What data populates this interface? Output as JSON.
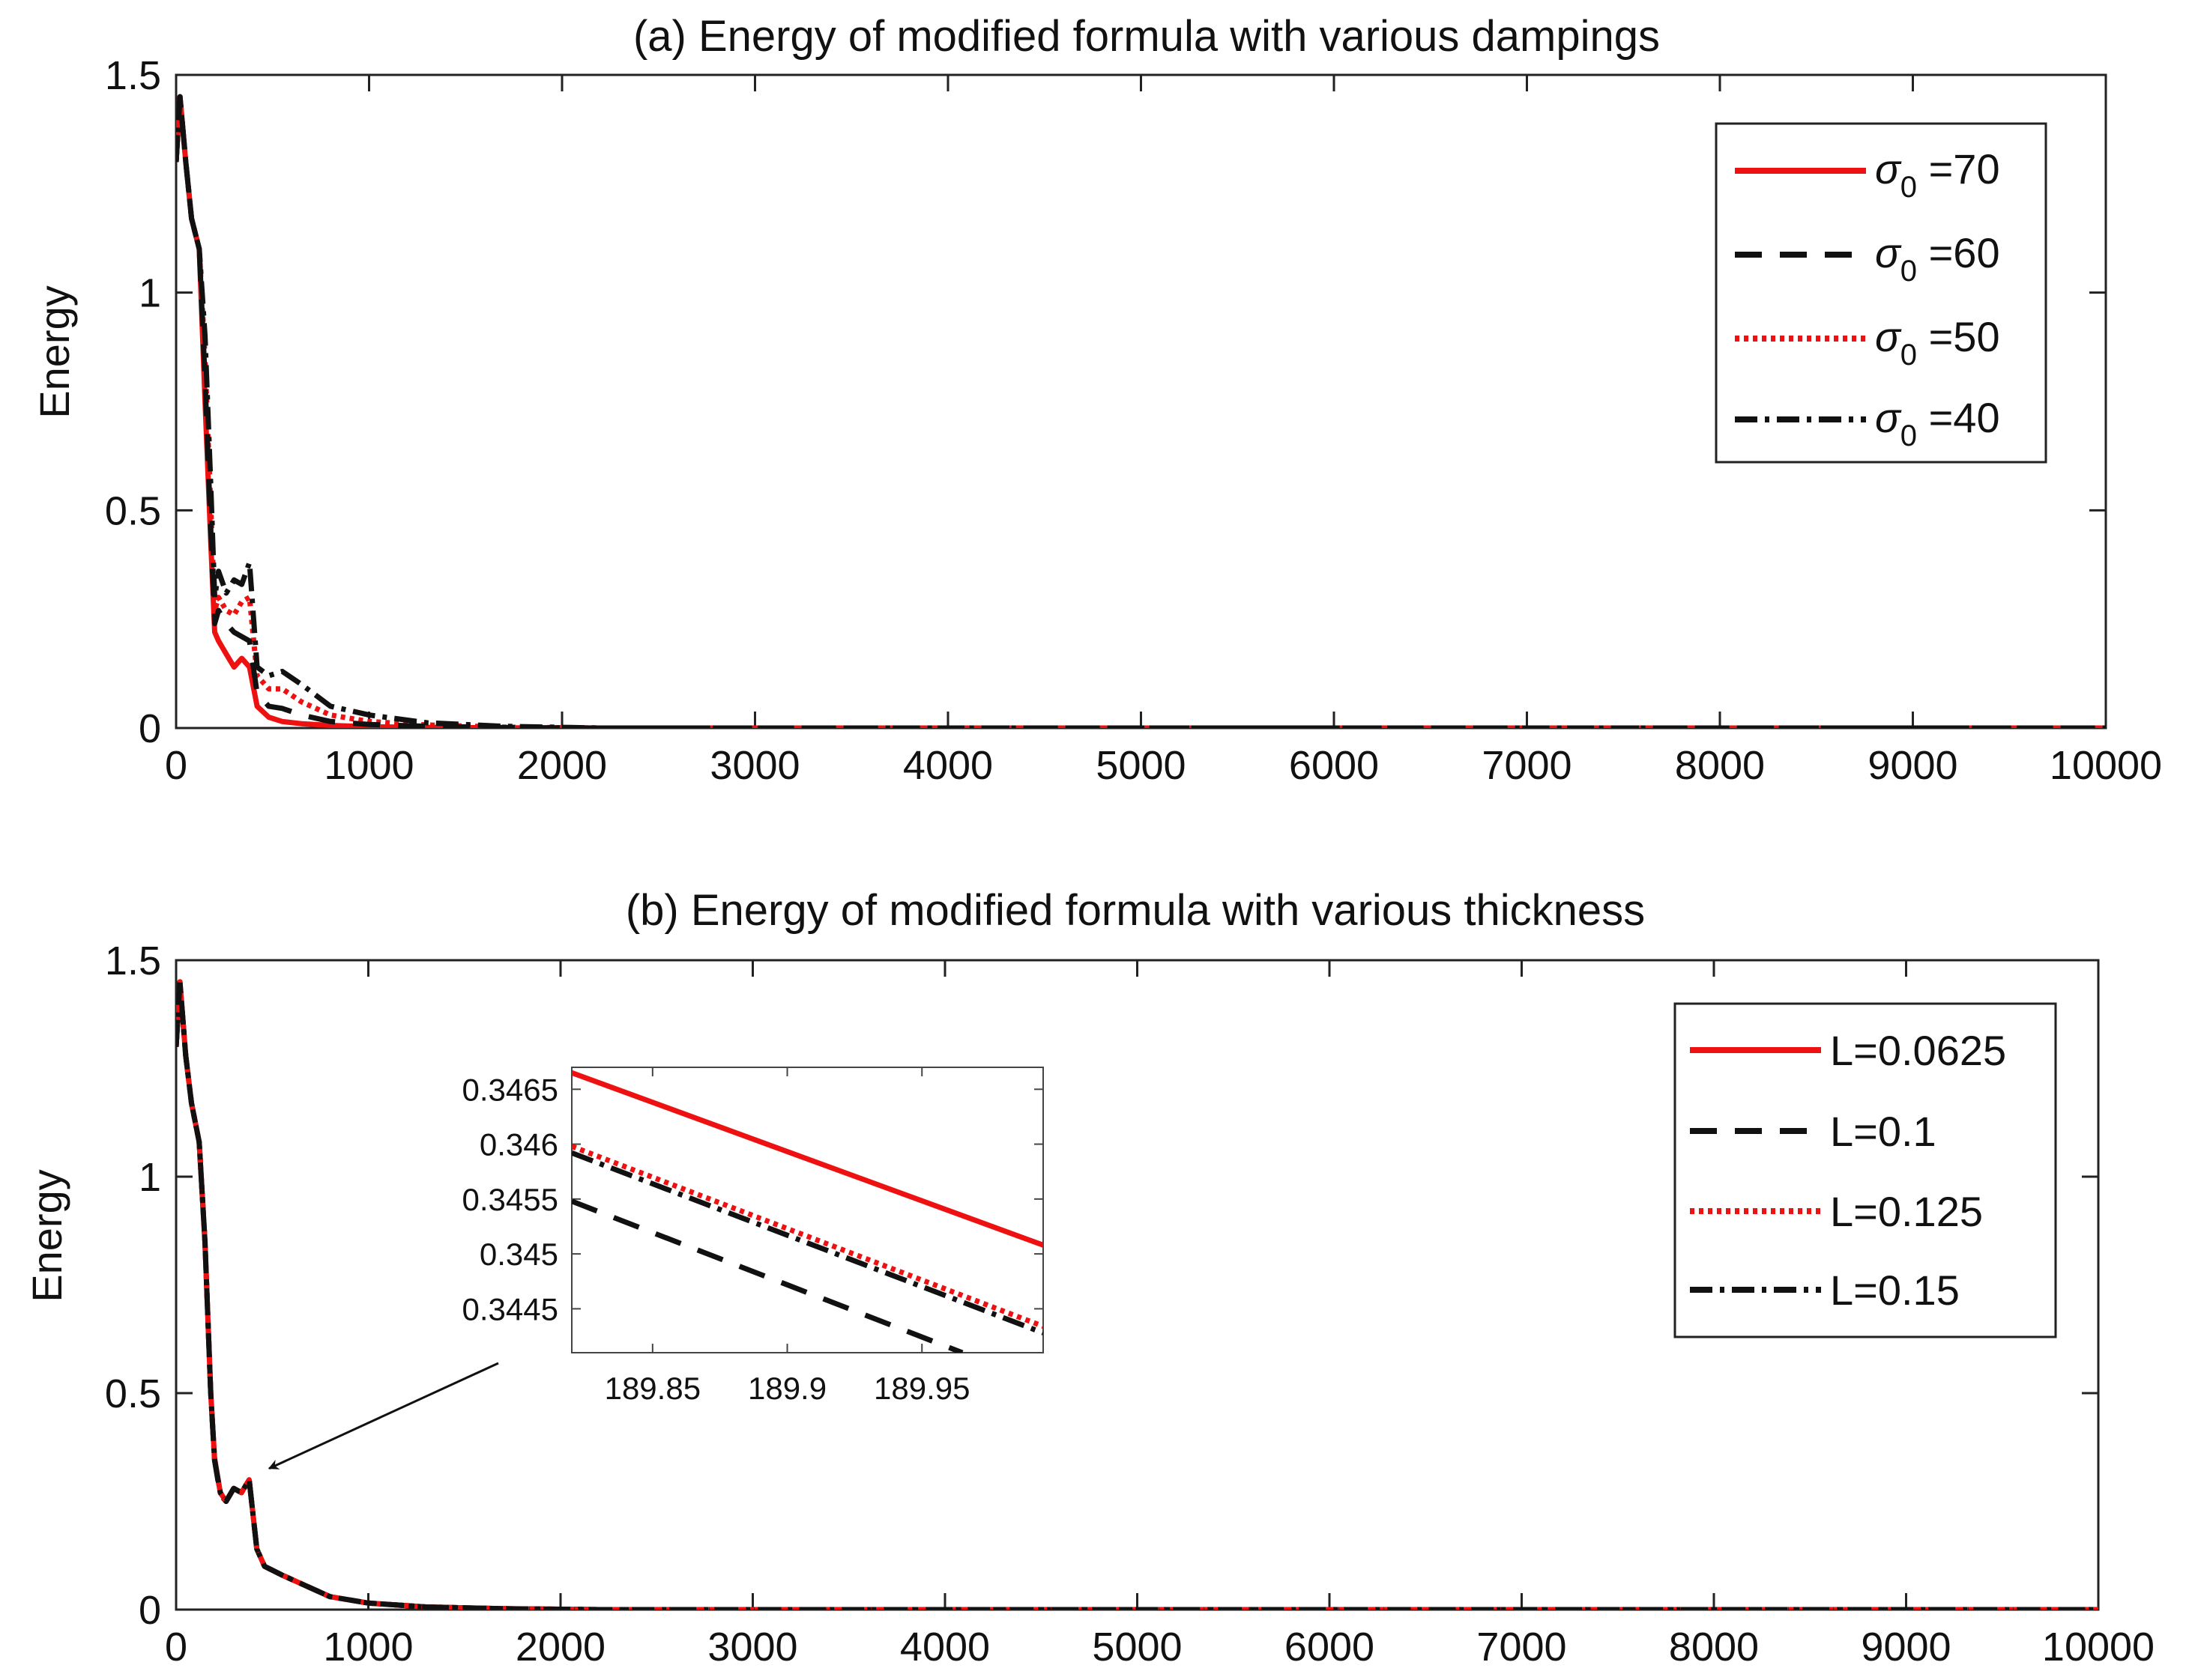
{
  "chart_data": [
    {
      "type": "line",
      "title": "(a) Energy of modified formula with various dampings",
      "xlabel": "",
      "ylabel": "Energy",
      "xlim": [
        0,
        10000
      ],
      "ylim": [
        0,
        1.5
      ],
      "xticks": [
        "0",
        "1000",
        "2000",
        "3000",
        "4000",
        "5000",
        "6000",
        "7000",
        "8000",
        "9000",
        "10000"
      ],
      "yticks": [
        "0",
        "0.5",
        "1",
        "1.5"
      ],
      "legend_position": "top-right",
      "series": [
        {
          "name": "σ0 =70",
          "label_symbol": "σ",
          "label_sub": "0",
          "label_rest": " =70",
          "color": "#ee1111",
          "style": "solid",
          "x": [
            0,
            20,
            50,
            80,
            120,
            150,
            180,
            200,
            220,
            260,
            300,
            340,
            380,
            420,
            480,
            550,
            650,
            800,
            1000,
            1300,
            1700,
            2200,
            10000
          ],
          "y": [
            1.3,
            1.45,
            1.3,
            1.17,
            1.1,
            0.75,
            0.42,
            0.22,
            0.2,
            0.17,
            0.14,
            0.16,
            0.14,
            0.05,
            0.025,
            0.015,
            0.01,
            0.006,
            0.003,
            0.0015,
            0.0005,
            0.0,
            0.0
          ]
        },
        {
          "name": "σ0 =60",
          "label_symbol": "σ",
          "label_sub": "0",
          "label_rest": " =60",
          "color": "#111111",
          "style": "dashed",
          "x": [
            0,
            20,
            50,
            80,
            120,
            150,
            180,
            200,
            220,
            260,
            300,
            340,
            380,
            420,
            480,
            550,
            650,
            800,
            1000,
            1300,
            1700,
            2200,
            10000
          ],
          "y": [
            1.3,
            1.45,
            1.3,
            1.17,
            1.1,
            0.8,
            0.45,
            0.24,
            0.27,
            0.24,
            0.22,
            0.21,
            0.2,
            0.08,
            0.05,
            0.045,
            0.03,
            0.015,
            0.008,
            0.004,
            0.001,
            0.0,
            0.0
          ]
        },
        {
          "name": "σ0 =50",
          "label_symbol": "σ",
          "label_sub": "0",
          "label_rest": " =50",
          "color": "#ee1111",
          "style": "dotted",
          "x": [
            0,
            20,
            50,
            80,
            120,
            150,
            180,
            200,
            220,
            260,
            300,
            340,
            380,
            420,
            480,
            550,
            650,
            800,
            1000,
            1300,
            1700,
            2200,
            10000
          ],
          "y": [
            1.3,
            1.45,
            1.3,
            1.17,
            1.1,
            0.85,
            0.5,
            0.27,
            0.3,
            0.27,
            0.26,
            0.29,
            0.3,
            0.12,
            0.09,
            0.09,
            0.06,
            0.03,
            0.015,
            0.007,
            0.002,
            0.0,
            0.0
          ]
        },
        {
          "name": "σ0 =40",
          "label_symbol": "σ",
          "label_sub": "0",
          "label_rest": " =40",
          "color": "#111111",
          "style": "dashdot",
          "x": [
            0,
            20,
            50,
            80,
            120,
            150,
            180,
            200,
            220,
            260,
            300,
            340,
            380,
            420,
            480,
            550,
            650,
            800,
            1000,
            1300,
            1700,
            2200,
            10000
          ],
          "y": [
            1.3,
            1.45,
            1.3,
            1.17,
            1.1,
            0.9,
            0.55,
            0.3,
            0.36,
            0.31,
            0.34,
            0.33,
            0.38,
            0.14,
            0.12,
            0.13,
            0.1,
            0.05,
            0.03,
            0.012,
            0.004,
            0.0,
            0.0
          ]
        }
      ]
    },
    {
      "type": "line",
      "title": "(b) Energy of modified formula with various thickness",
      "xlabel": "",
      "ylabel": "Energy",
      "xlim": [
        0,
        10000
      ],
      "ylim": [
        0,
        1.5
      ],
      "xticks": [
        "0",
        "1000",
        "2000",
        "3000",
        "4000",
        "5000",
        "6000",
        "7000",
        "8000",
        "9000",
        "10000"
      ],
      "yticks": [
        "0",
        "0.5",
        "1",
        "1.5"
      ],
      "legend_position": "top-right",
      "series": [
        {
          "name": "L=0.0625",
          "color": "#ee1111",
          "style": "solid",
          "x": [
            0,
            20,
            50,
            80,
            120,
            150,
            180,
            200,
            230,
            260,
            300,
            340,
            380,
            420,
            460,
            550,
            650,
            800,
            1000,
            1300,
            1700,
            2200,
            10000
          ],
          "y": [
            1.3,
            1.45,
            1.28,
            1.17,
            1.08,
            0.85,
            0.5,
            0.35,
            0.27,
            0.25,
            0.28,
            0.27,
            0.3,
            0.14,
            0.1,
            0.08,
            0.06,
            0.03,
            0.015,
            0.006,
            0.002,
            0.0,
            0.0
          ]
        },
        {
          "name": "L=0.1",
          "color": "#111111",
          "style": "dashed",
          "x": [
            0,
            20,
            50,
            80,
            120,
            150,
            180,
            200,
            230,
            260,
            300,
            340,
            380,
            420,
            460,
            550,
            650,
            800,
            1000,
            1300,
            1700,
            2200,
            10000
          ],
          "y": [
            1.3,
            1.45,
            1.28,
            1.17,
            1.08,
            0.85,
            0.5,
            0.345,
            0.265,
            0.25,
            0.28,
            0.27,
            0.3,
            0.14,
            0.1,
            0.08,
            0.06,
            0.03,
            0.015,
            0.006,
            0.002,
            0.0,
            0.0
          ]
        },
        {
          "name": "L=0.125",
          "color": "#ee1111",
          "style": "dotted",
          "x": [
            0,
            20,
            50,
            80,
            120,
            150,
            180,
            200,
            230,
            260,
            300,
            340,
            380,
            420,
            460,
            550,
            650,
            800,
            1000,
            1300,
            1700,
            2200,
            10000
          ],
          "y": [
            1.3,
            1.45,
            1.28,
            1.17,
            1.08,
            0.85,
            0.5,
            0.346,
            0.27,
            0.25,
            0.28,
            0.27,
            0.3,
            0.14,
            0.1,
            0.08,
            0.06,
            0.03,
            0.015,
            0.006,
            0.002,
            0.0,
            0.0
          ]
        },
        {
          "name": "L=0.15",
          "color": "#111111",
          "style": "dashdot",
          "x": [
            0,
            20,
            50,
            80,
            120,
            150,
            180,
            200,
            230,
            260,
            300,
            340,
            380,
            420,
            460,
            550,
            650,
            800,
            1000,
            1300,
            1700,
            2200,
            10000
          ],
          "y": [
            1.3,
            1.45,
            1.28,
            1.17,
            1.08,
            0.85,
            0.5,
            0.346,
            0.27,
            0.25,
            0.28,
            0.27,
            0.3,
            0.14,
            0.1,
            0.08,
            0.06,
            0.03,
            0.015,
            0.006,
            0.002,
            0.0,
            0.0
          ]
        }
      ],
      "inset": {
        "xlim": [
          189.82,
          189.995
        ],
        "ylim": [
          0.3441,
          0.3467
        ],
        "xticks": [
          "189.85",
          "189.9",
          "189.95"
        ],
        "xtick_values": [
          189.85,
          189.9,
          189.95
        ],
        "yticks": [
          "0.3445",
          "0.345",
          "0.3455",
          "0.346",
          "0.3465"
        ],
        "ytick_values": [
          0.3445,
          0.345,
          0.3455,
          0.346,
          0.3465
        ],
        "series": [
          {
            "name": "L=0.0625",
            "color": "#ee1111",
            "style": "solid",
            "x": [
              189.82,
              189.995
            ],
            "y": [
              0.34665,
              0.34508
            ]
          },
          {
            "name": "L=0.1",
            "color": "#111111",
            "style": "dashed",
            "x": [
              189.82,
              189.965
            ],
            "y": [
              0.34548,
              0.3441
            ]
          },
          {
            "name": "L=0.125",
            "color": "#ee1111",
            "style": "dotted",
            "x": [
              189.82,
              189.995
            ],
            "y": [
              0.34598,
              0.34434
            ]
          },
          {
            "name": "L=0.15",
            "color": "#111111",
            "style": "dashdot",
            "x": [
              189.82,
              189.995
            ],
            "y": [
              0.34592,
              0.34428
            ]
          }
        ],
        "arrow_target": {
          "x": 250,
          "y": 0.3
        }
      }
    }
  ]
}
